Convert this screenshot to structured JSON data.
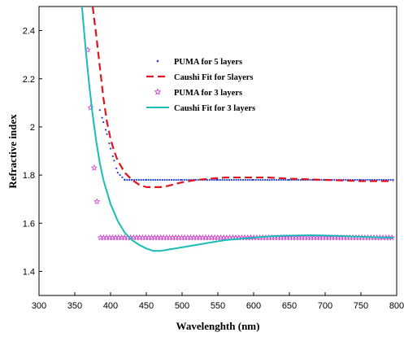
{
  "chart_data": {
    "type": "line",
    "xlabel": "Wavelenghth (nm)",
    "ylabel": "Refractive index",
    "xlim": [
      300,
      800
    ],
    "ylim": [
      1.3,
      2.5
    ],
    "xticks": [
      300,
      350,
      400,
      450,
      500,
      550,
      600,
      650,
      700,
      750,
      800
    ],
    "yticks": [
      1.4,
      1.6,
      1.8,
      2,
      2.2,
      2.4
    ],
    "ytick_labels": [
      "1.4",
      "1.6",
      "1.8",
      "2",
      "2.2",
      "2.4"
    ],
    "grid": false,
    "legend_position": "upper-center",
    "series": [
      {
        "name": "PUMA for 5 layers",
        "style": "dots",
        "color": "#1f3fd6",
        "x": [
          385,
          390,
          395,
          400,
          405,
          410,
          420,
          430,
          450,
          500,
          550,
          600,
          650,
          700,
          750,
          795
        ],
        "y": [
          2.07,
          2.02,
          1.97,
          1.91,
          1.86,
          1.81,
          1.78,
          1.78,
          1.78,
          1.78,
          1.78,
          1.78,
          1.78,
          1.78,
          1.78,
          1.78
        ]
      },
      {
        "name": "Caushi Fit for 5layers",
        "style": "dashed",
        "color": "#e0141e",
        "x": [
          375,
          380,
          385,
          390,
          395,
          400,
          405,
          410,
          420,
          430,
          440,
          450,
          460,
          470,
          480,
          500,
          520,
          540,
          560,
          580,
          600,
          620,
          650,
          700,
          750,
          795
        ],
        "y": [
          2.5,
          2.38,
          2.25,
          2.12,
          2.02,
          1.95,
          1.9,
          1.86,
          1.81,
          1.78,
          1.76,
          1.75,
          1.75,
          1.75,
          1.755,
          1.77,
          1.78,
          1.785,
          1.79,
          1.79,
          1.79,
          1.79,
          1.785,
          1.78,
          1.775,
          1.775
        ]
      },
      {
        "name": "PUMA for 3 layers",
        "style": "stars",
        "color": "#cc44cc",
        "x": [
          368,
          372,
          377,
          381,
          386,
          391,
          400,
          420,
          450,
          500,
          550,
          600,
          650,
          700,
          750,
          795
        ],
        "y": [
          2.32,
          2.08,
          1.83,
          1.69,
          1.54,
          1.54,
          1.54,
          1.54,
          1.54,
          1.54,
          1.54,
          1.54,
          1.54,
          1.54,
          1.54,
          1.54
        ]
      },
      {
        "name": "Caushi Fit for 3 layers",
        "style": "solid",
        "color": "#1bbcb8",
        "x": [
          360,
          365,
          370,
          375,
          380,
          385,
          390,
          400,
          410,
          420,
          430,
          440,
          450,
          460,
          470,
          480,
          500,
          520,
          540,
          560,
          580,
          600,
          620,
          640,
          660,
          680,
          700,
          720,
          750,
          780,
          795
        ],
        "y": [
          2.5,
          2.33,
          2.18,
          2.05,
          1.94,
          1.85,
          1.78,
          1.68,
          1.61,
          1.56,
          1.53,
          1.51,
          1.495,
          1.485,
          1.485,
          1.49,
          1.5,
          1.51,
          1.52,
          1.53,
          1.535,
          1.54,
          1.545,
          1.548,
          1.549,
          1.55,
          1.549,
          1.547,
          1.544,
          1.541,
          1.54
        ]
      }
    ]
  }
}
